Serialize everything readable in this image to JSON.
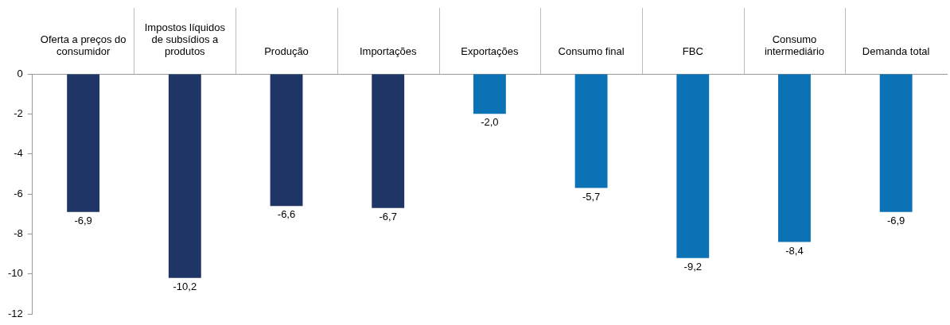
{
  "chart_data": {
    "type": "bar",
    "categories": [
      "Oferta a preços do consumidor",
      "Impostos líquidos de subsídios a produtos",
      "Produção",
      "Importações",
      "Exportações",
      "Consumo final",
      "FBC",
      "Consumo intermediário",
      "Demanda total"
    ],
    "values": [
      -6.9,
      -10.2,
      -6.6,
      -6.7,
      -2.0,
      -5.7,
      -9.2,
      -8.4,
      -6.9
    ],
    "colors": [
      "#1f3566",
      "#1f3566",
      "#1f3566",
      "#1f3566",
      "#0b72b5",
      "#0b72b5",
      "#0b72b5",
      "#0b72b5",
      "#0b72b5"
    ],
    "value_labels": [
      "-6,9",
      "-10,2",
      "-6,6",
      "-6,7",
      "-2,0",
      "-5,7",
      "-9,2",
      "-8,4",
      "-6,9"
    ],
    "ylim": [
      -12,
      0
    ],
    "yticks": [
      0,
      -2,
      -4,
      -6,
      -8,
      -10,
      -12
    ],
    "grid": false,
    "legend": false
  }
}
